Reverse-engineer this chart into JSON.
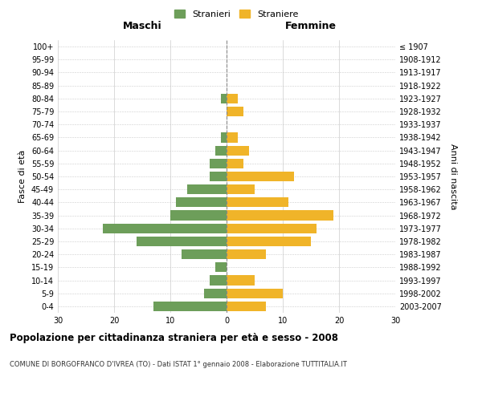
{
  "age_groups": [
    "0-4",
    "5-9",
    "10-14",
    "15-19",
    "20-24",
    "25-29",
    "30-34",
    "35-39",
    "40-44",
    "45-49",
    "50-54",
    "55-59",
    "60-64",
    "65-69",
    "70-74",
    "75-79",
    "80-84",
    "85-89",
    "90-94",
    "95-99",
    "100+"
  ],
  "birth_years": [
    "2003-2007",
    "1998-2002",
    "1993-1997",
    "1988-1992",
    "1983-1987",
    "1978-1982",
    "1973-1977",
    "1968-1972",
    "1963-1967",
    "1958-1962",
    "1953-1957",
    "1948-1952",
    "1943-1947",
    "1938-1942",
    "1933-1937",
    "1928-1932",
    "1923-1927",
    "1918-1922",
    "1913-1917",
    "1908-1912",
    "≤ 1907"
  ],
  "males": [
    13,
    4,
    3,
    2,
    8,
    16,
    22,
    10,
    9,
    7,
    3,
    3,
    2,
    1,
    0,
    0,
    1,
    0,
    0,
    0,
    0
  ],
  "females": [
    7,
    10,
    5,
    0,
    7,
    15,
    16,
    19,
    11,
    5,
    12,
    3,
    4,
    2,
    0,
    3,
    2,
    0,
    0,
    0,
    0
  ],
  "male_color": "#6d9e5a",
  "female_color": "#f0b429",
  "background_color": "#ffffff",
  "grid_color": "#cccccc",
  "center_line_color": "#888888",
  "title": "Popolazione per cittadinanza straniera per età e sesso - 2008",
  "subtitle": "COMUNE DI BORGOFRANCO D'IVREA (TO) - Dati ISTAT 1° gennaio 2008 - Elaborazione TUTTITALIA.IT",
  "ylabel_left": "Fasce di età",
  "ylabel_right": "Anni di nascita",
  "xlabel_left": "Maschi",
  "xlabel_right": "Femmine",
  "legend_male": "Stranieri",
  "legend_female": "Straniere",
  "xlim": 30
}
